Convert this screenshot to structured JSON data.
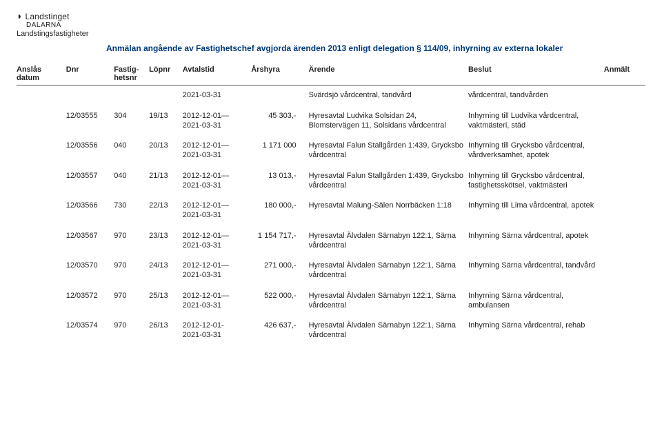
{
  "logo": {
    "name": "Landstinget",
    "region": "DALARNA",
    "unit": "Landstingsfastigheter"
  },
  "title": "Anmälan angående av Fastighetschef avgjorda ärenden 2013 enligt delegation § 114/09, inhyrning av externa lokaler",
  "columns": {
    "anslas": "Anslås\ndatum",
    "dnr": "Dnr",
    "fastighetsnr": "Fastig-\nhetsnr",
    "lopnr": "Löpnr",
    "avtalstid": "Avtalstid",
    "arshyra": "Årshyra",
    "arende": "Ärende",
    "beslut": "Beslut",
    "anmalt": "Anmält"
  },
  "rows": [
    {
      "anslas": "",
      "dnr": "",
      "fastighetsnr": "",
      "lopnr": "",
      "avtalstid": "2021-03-31",
      "arshyra": "",
      "arende": "Svärdsjö vårdcentral, tandvård",
      "beslut": "vårdcentral, tandvården",
      "anmalt": ""
    },
    {
      "anslas": "",
      "dnr": "12/03555",
      "fastighetsnr": "304",
      "lopnr": "19/13",
      "avtalstid": "2012-12-01—\n2021-03-31",
      "arshyra": "45 303,-",
      "arende": "Hyresavtal Ludvika Solsidan 24, Blomstervägen 11, Solsidans vårdcentral",
      "beslut": "Inhyrning till Ludvika vårdcentral, vaktmästeri, städ",
      "anmalt": ""
    },
    {
      "anslas": "",
      "dnr": "12/03556",
      "fastighetsnr": "040",
      "lopnr": "20/13",
      "avtalstid": "2012-12-01—\n2021-03-31",
      "arshyra": "1 171 000",
      "arende": "Hyresavtal Falun Stallgården 1:439, Grycksbo vårdcentral",
      "beslut": "Inhyrning till Grycksbo vårdcentral, vårdverksamhet, apotek",
      "anmalt": ""
    },
    {
      "anslas": "",
      "dnr": "12/03557",
      "fastighetsnr": "040",
      "lopnr": "21/13",
      "avtalstid": "2012-12-01—\n2021-03-31",
      "arshyra": "13 013,-",
      "arende": "Hyresavtal Falun Stallgården 1:439, Grycksbo vårdcentral",
      "beslut": "Inhyrning till Grycksbo vårdcentral, fastighetsskötsel, vaktmästeri",
      "anmalt": ""
    },
    {
      "anslas": "",
      "dnr": "12/03566",
      "fastighetsnr": "730",
      "lopnr": "22/13",
      "avtalstid": "2012-12-01—\n2021-03-31",
      "arshyra": "180 000,-",
      "arende": "Hyresavtal Malung-Sälen Norrbäcken 1:18",
      "beslut": "Inhyrning till Lima vårdcentral, apotek",
      "anmalt": ""
    },
    {
      "anslas": "",
      "dnr": "12/03567",
      "fastighetsnr": "970",
      "lopnr": "23/13",
      "avtalstid": "2012-12-01—\n2021-03-31",
      "arshyra": "1 154 717,-",
      "arende": "Hyresavtal Älvdalen Särnabyn 122:1, Särna vårdcentral",
      "beslut": "Inhyrning Särna vårdcentral, apotek",
      "anmalt": ""
    },
    {
      "anslas": "",
      "dnr": "12/03570",
      "fastighetsnr": "970",
      "lopnr": "24/13",
      "avtalstid": "2012-12-01—\n2021-03-31",
      "arshyra": "271 000,-",
      "arende": "Hyresavtal Älvdalen Särnabyn 122:1, Särna vårdcentral",
      "beslut": "Inhyrning Särna vårdcentral, tandvård",
      "anmalt": ""
    },
    {
      "anslas": "",
      "dnr": "12/03572",
      "fastighetsnr": "970",
      "lopnr": "25/13",
      "avtalstid": "2012-12-01—\n2021-03-31",
      "arshyra": "522 000,-",
      "arende": "Hyresavtal Älvdalen Särnabyn 122:1, Särna vårdcentral",
      "beslut": "Inhyrning Särna vårdcentral, ambulansen",
      "anmalt": ""
    },
    {
      "anslas": "",
      "dnr": "12/03574",
      "fastighetsnr": "970",
      "lopnr": "26/13",
      "avtalstid": "2012-12-01-\n2021-03-31",
      "arshyra": "426 637,-",
      "arende": "Hyresavtal Älvdalen Särnabyn 122:1, Särna vårdcentral",
      "beslut": "Inhyrning Särna vårdcentral, rehab",
      "anmalt": ""
    }
  ]
}
